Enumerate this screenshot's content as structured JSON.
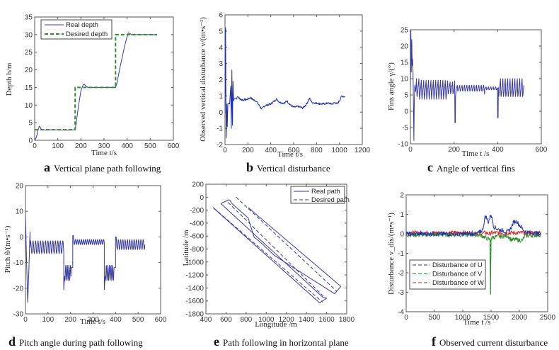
{
  "chart_data": [
    {
      "id": "a",
      "type": "line",
      "caption_letter": "a",
      "caption": "Vertical plane path following",
      "xlabel": "Time t/s",
      "ylabel": "Depth h/m",
      "xlim": [
        0,
        600
      ],
      "ylim": [
        0,
        35
      ],
      "xticks": [
        0,
        100,
        200,
        300,
        400,
        500,
        600
      ],
      "yticks": [
        0,
        5,
        10,
        15,
        20,
        25,
        30,
        35
      ],
      "legend_position": "top-left",
      "series": [
        {
          "name": "Real depth",
          "style": "solid",
          "color": "#3a3a9a",
          "x": [
            0,
            5,
            10,
            15,
            20,
            25,
            30,
            40,
            50,
            80,
            120,
            150,
            175,
            180,
            190,
            200,
            210,
            215,
            220,
            230,
            260,
            300,
            350,
            355,
            370,
            390,
            400,
            405,
            410,
            420,
            460,
            500,
            530
          ],
          "y": [
            0,
            0.5,
            1.5,
            3,
            4,
            3.6,
            3,
            3,
            2.9,
            3,
            2.9,
            2.9,
            3,
            5,
            10,
            14,
            15.8,
            15.9,
            15.5,
            15,
            15,
            15,
            15,
            16,
            21,
            27,
            29.5,
            30.5,
            30.4,
            30,
            30,
            30,
            30
          ]
        },
        {
          "name": "Desired depth",
          "style": "dashed",
          "color": "#2e8b2e",
          "x": [
            0,
            175,
            175,
            350,
            350,
            530
          ],
          "y": [
            3,
            3,
            15,
            15,
            30,
            30
          ]
        }
      ]
    },
    {
      "id": "b",
      "type": "line",
      "caption_letter": "b",
      "caption": "Vertical disturbance",
      "xlabel": "Time t/s",
      "ylabel": "Observed vertical disturbance  v/(m•s⁻¹)",
      "xlim": [
        0,
        1200
      ],
      "ylim": [
        -2,
        6
      ],
      "xticks": [
        0,
        200,
        400,
        600,
        800,
        1000,
        1200
      ],
      "yticks": [
        -2,
        -1,
        0,
        1,
        2,
        3,
        4,
        5,
        6
      ],
      "series": [
        {
          "name": "Observed vertical disturbance",
          "style": "solid",
          "color": "#2233aa",
          "x": [
            0,
            5,
            8,
            12,
            16,
            20,
            25,
            30,
            40,
            50,
            55,
            60,
            65,
            70,
            75,
            80,
            90,
            100,
            110,
            130,
            160,
            200,
            220,
            250,
            270,
            300,
            320,
            350,
            400,
            450,
            480,
            520,
            540,
            570,
            600,
            640,
            680,
            700,
            720,
            740,
            760,
            800,
            850,
            900,
            940,
            960,
            980,
            1000,
            1020,
            1040,
            1050
          ],
          "y": [
            0,
            5.2,
            0.2,
            -1.6,
            0.5,
            -0.9,
            0.5,
            0.55,
            0.5,
            1.6,
            -1.0,
            2.6,
            -0.8,
            1.9,
            0.7,
            0.8,
            0.85,
            0.8,
            1.0,
            0.8,
            0.75,
            0.8,
            0.9,
            0.75,
            0.7,
            0.4,
            0.2,
            0.4,
            0.5,
            0.8,
            0.6,
            0.55,
            0.7,
            0.45,
            0.3,
            0.35,
            0.25,
            0.4,
            0.6,
            0.85,
            0.6,
            0.55,
            0.5,
            0.55,
            0.5,
            0.6,
            0.5,
            0.7,
            1.0,
            0.95,
            0.95
          ]
        }
      ]
    },
    {
      "id": "c",
      "type": "line",
      "caption_letter": "c",
      "caption": "Angle of vertical fins",
      "xlabel": "Time t /s",
      "ylabel": "Fins angle γ/(°)",
      "xlim": [
        0,
        600
      ],
      "ylim": [
        -10,
        25
      ],
      "xticks": [
        0,
        200,
        400,
        600
      ],
      "yticks": [
        -10,
        -5,
        0,
        5,
        10,
        15,
        20,
        25
      ],
      "series": [
        {
          "name": "Fins angle",
          "style": "solid",
          "color": "#3a3a9a",
          "x": [
            0,
            2,
            4,
            6,
            8,
            10,
            12,
            14,
            16,
            18,
            20,
            24,
            28,
            180,
            200,
            205,
            210,
            215,
            220,
            340,
            360,
            390,
            400,
            402,
            405,
            410,
            420,
            520
          ],
          "y": [
            7,
            25,
            12,
            22,
            14,
            16,
            12,
            2,
            -9,
            3,
            8,
            6,
            9,
            8,
            8,
            -3.5,
            6,
            2,
            8,
            8,
            8,
            8,
            8,
            -2,
            9,
            7,
            8,
            8
          ],
          "oscillation": {
            "amplitude": 3,
            "period_s": 11,
            "baseline": 7
          }
        }
      ]
    },
    {
      "id": "d",
      "type": "line",
      "caption_letter": "d",
      "caption": "Pitch angle during path following",
      "xlabel": "Time t/s",
      "ylabel": "Pitch θ/(m•s⁻¹)",
      "xlim": [
        0,
        600
      ],
      "ylim": [
        -30,
        20
      ],
      "xticks": [
        0,
        100,
        200,
        300,
        400,
        500,
        600
      ],
      "yticks": [
        -30,
        -20,
        -10,
        0,
        10,
        20
      ],
      "series": [
        {
          "name": "Pitch",
          "style": "solid",
          "color": "#3a3a9a",
          "segments": [
            {
              "x0": 0,
              "x1": 5,
              "y": [
                8,
                -10
              ]
            },
            {
              "x0": 5,
              "x1": 20,
              "y": [
                -10,
                -25.5,
                -13,
                2
              ]
            },
            {
              "x0": 20,
              "x1": 170,
              "base": -4,
              "amp": 2.5,
              "period": 11
            },
            {
              "x0": 170,
              "x1": 210,
              "base": -14,
              "amp": 3,
              "period": 7,
              "dip": -20.5
            },
            {
              "x0": 210,
              "x1": 350,
              "base": -2,
              "amp": 1,
              "period": 9,
              "start_peak": 0.5
            },
            {
              "x0": 350,
              "x1": 400,
              "base": -14,
              "amp": 3,
              "period": 7,
              "dip": -20.5
            },
            {
              "x0": 400,
              "x1": 530,
              "base": -3,
              "amp": 2,
              "period": 10,
              "start_peak": 0
            }
          ]
        }
      ]
    },
    {
      "id": "e",
      "type": "line",
      "caption_letter": "e",
      "caption": "Path following in horizontal plane",
      "xlabel": "Longitude /m",
      "ylabel": "Latitude /m",
      "xlim": [
        400,
        1800
      ],
      "ylim": [
        -1800,
        200
      ],
      "xticks": [
        400,
        600,
        800,
        1000,
        1200,
        1400,
        1600,
        1800
      ],
      "yticks": [
        -1800,
        -1600,
        -1400,
        -1200,
        -1000,
        -800,
        -600,
        -400,
        -200,
        0,
        200
      ],
      "legend_position": "top-right",
      "series": [
        {
          "name": "Real path",
          "style": "solid",
          "color": "#3a3a9a",
          "x": [
            470,
            1530,
            1600,
            1560,
            550,
            560,
            630,
            640,
            660,
            820,
            880,
            900,
            960,
            1080,
            1680,
            1740,
            1730,
            820
          ],
          "y": [
            -160,
            -1630,
            -1560,
            -1540,
            -100,
            -90,
            -40,
            -50,
            -100,
            -320,
            -620,
            -640,
            -720,
            -900,
            -1490,
            -1380,
            -1360,
            -160
          ]
        },
        {
          "name": "Desired path",
          "style": "dashed",
          "color": "#3a3a9a",
          "x": [
            700,
            1600,
            1700
          ],
          "y": [
            0,
            -1450,
            -1450
          ]
        }
      ]
    },
    {
      "id": "f",
      "type": "line",
      "caption_letter": "f",
      "caption": "Observed current disturbance",
      "xlabel": "Time t /s",
      "ylabel": "Disturbance v_dis/(m•s⁻¹)",
      "xlim": [
        0,
        2500
      ],
      "ylim": [
        -4,
        2
      ],
      "xticks": [
        0,
        500,
        1000,
        1500,
        2000,
        2500
      ],
      "yticks": [
        -4,
        -3,
        -2,
        -1,
        0,
        1,
        2
      ],
      "legend_position": "bottom-left",
      "series": [
        {
          "name": "Disturbance of U",
          "style": "dashed",
          "color": "#2233aa",
          "x": [
            0,
            1250,
            1350,
            1400,
            1450,
            1500,
            1550,
            1650,
            1800,
            1850,
            1900,
            1950,
            2000,
            2100,
            2380
          ],
          "y": [
            0,
            0,
            0.2,
            0.95,
            0.6,
            1.0,
            0.35,
            0.2,
            0.1,
            0.3,
            0.6,
            0.65,
            0.45,
            0.1,
            0
          ]
        },
        {
          "name": "Disturbance of V",
          "style": "dashed",
          "color": "#2a8a2a",
          "x": [
            0,
            1300,
            1400,
            1480,
            1490,
            1500,
            1510,
            1600,
            1800,
            1850,
            1950,
            2050,
            2100,
            2380
          ],
          "y": [
            -0.05,
            -0.05,
            -0.2,
            -0.3,
            -3.05,
            -0.3,
            -0.2,
            -0.15,
            -0.1,
            -0.3,
            -0.3,
            -0.35,
            -0.1,
            -0.05
          ]
        },
        {
          "name": "Disturbance of W",
          "style": "dashed",
          "color": "#dd2222",
          "x": [
            0,
            1400,
            1480,
            1500,
            1520,
            2380
          ],
          "y": [
            0.05,
            0.05,
            0.0,
            0.05,
            0.05,
            0.05
          ]
        }
      ]
    }
  ],
  "legends": {
    "a": [
      "Real depth",
      "Desired depth"
    ],
    "e": [
      "Real path",
      "Desired path"
    ],
    "f": [
      "Disturbance of U",
      "Disturbance of V",
      "Disturbance of W"
    ]
  }
}
